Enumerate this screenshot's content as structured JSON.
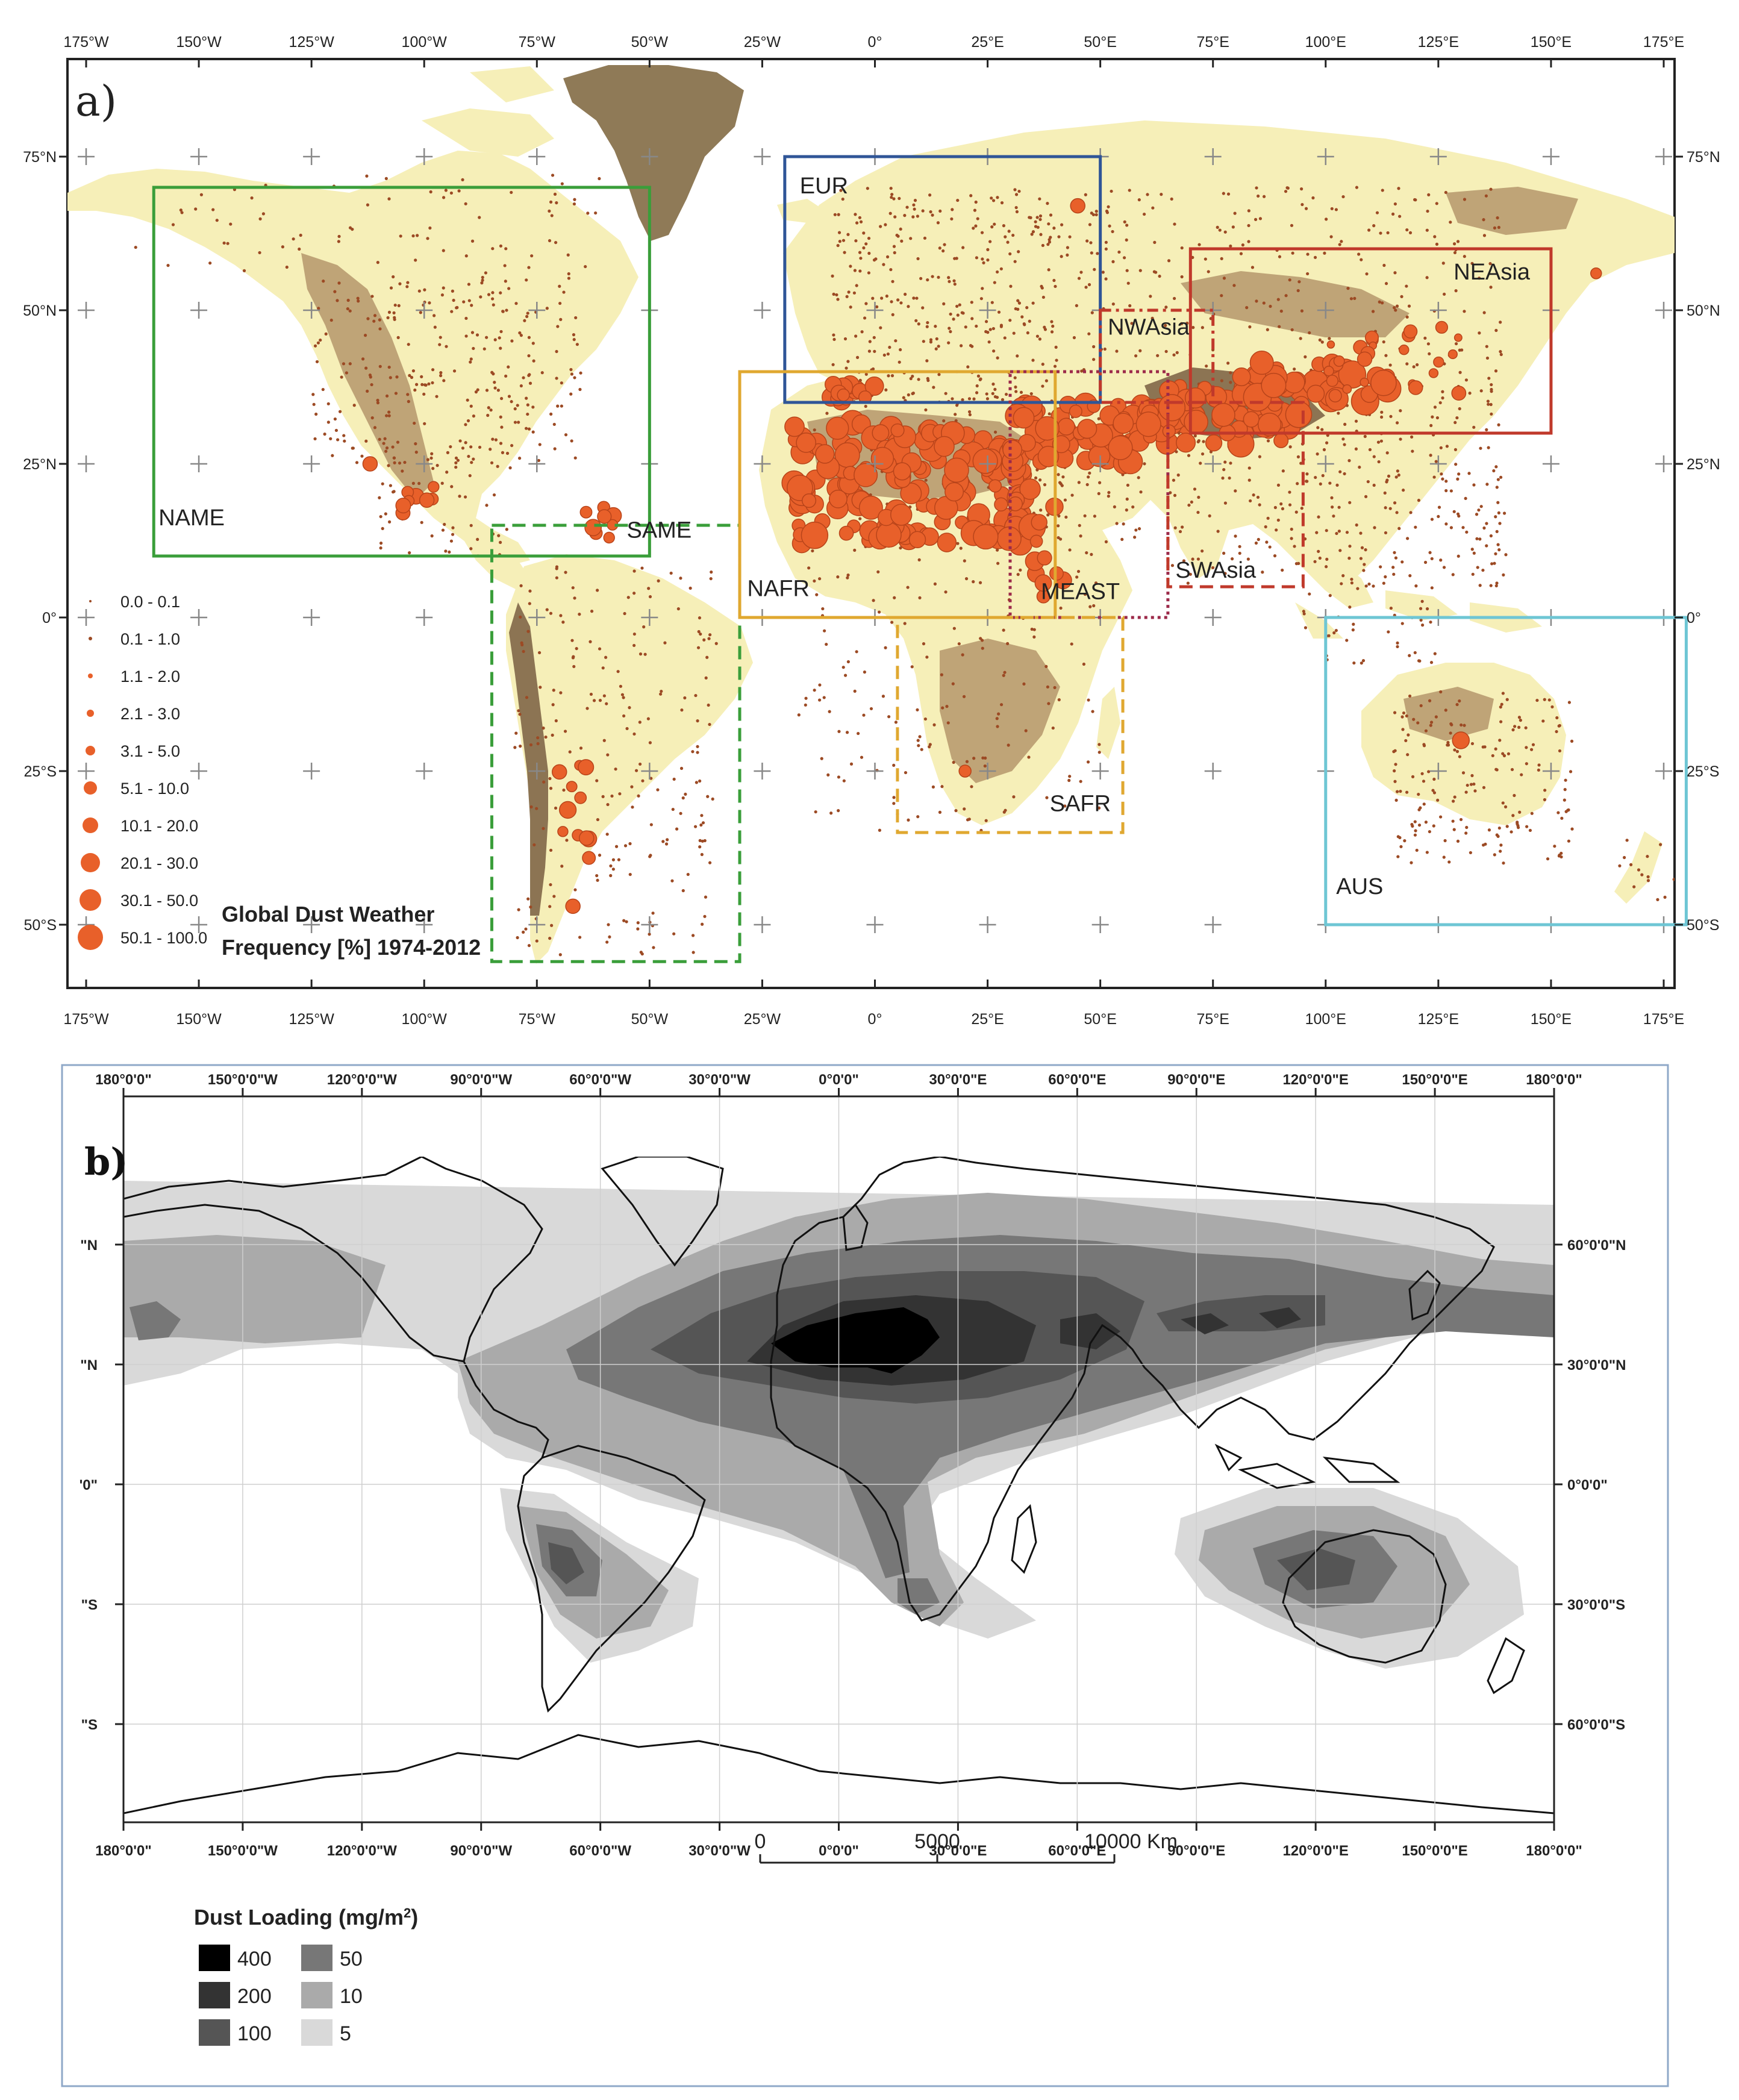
{
  "panel_a": {
    "label": "a)",
    "lon_ticks": [
      "175°W",
      "150°W",
      "125°W",
      "100°W",
      "75°W",
      "50°W",
      "25°W",
      "0°",
      "25°E",
      "50°E",
      "75°E",
      "100°E",
      "125°E",
      "150°E",
      "175°E"
    ],
    "lat_ticks": [
      "75°N",
      "50°N",
      "25°N",
      "0°",
      "25°S",
      "50°S"
    ],
    "regions": [
      {
        "name": "NAME",
        "color": "#3a9e3a",
        "style": "solid",
        "lon": [
          -160,
          -50
        ],
        "lat": [
          10,
          70
        ]
      },
      {
        "name": "SAME",
        "color": "#3a9e3a",
        "style": "dashed",
        "lon": [
          -85,
          -30
        ],
        "lat": [
          -56,
          15
        ]
      },
      {
        "name": "EUR",
        "color": "#2f5597",
        "style": "solid",
        "lon": [
          -20,
          50
        ],
        "lat": [
          35,
          75
        ]
      },
      {
        "name": "NAFR",
        "color": "#e0a830",
        "style": "solid",
        "lon": [
          -30,
          40
        ],
        "lat": [
          0,
          40
        ]
      },
      {
        "name": "MEAST",
        "color": "#9c2a4a",
        "style": "dotted",
        "lon": [
          30,
          65
        ],
        "lat": [
          0,
          40
        ]
      },
      {
        "name": "NWAsia",
        "color": "#c0392b",
        "style": "dashdot",
        "lon": [
          50,
          75
        ],
        "lat": [
          35,
          50
        ]
      },
      {
        "name": "NEAsia",
        "color": "#c0392b",
        "style": "solid",
        "lon": [
          70,
          150
        ],
        "lat": [
          30,
          60
        ]
      },
      {
        "name": "SWAsia",
        "color": "#c0392b",
        "style": "dashed",
        "lon": [
          65,
          95
        ],
        "lat": [
          5,
          35
        ]
      },
      {
        "name": "SAFR",
        "color": "#e0a830",
        "style": "dashed",
        "lon": [
          5,
          55
        ],
        "lat": [
          -35,
          0
        ]
      },
      {
        "name": "AUS",
        "color": "#6ec6d4",
        "style": "solid",
        "lon": [
          100,
          180
        ],
        "lat": [
          -50,
          0
        ]
      }
    ],
    "legend": {
      "title_line1": "Global Dust Weather",
      "title_line2": "Frequency [%] 1974-2012",
      "classes": [
        "0.0 - 0.1",
        "0.1 - 1.0",
        "1.1 - 2.0",
        "2.1 - 3.0",
        "3.1 - 5.0",
        "5.1 - 10.0",
        "10.1 - 20.0",
        "20.1 - 30.0",
        "30.1 - 50.0",
        "50.1 - 100.0"
      ],
      "marker_color": "#e8602a"
    },
    "colors": {
      "land": "#f6efb8",
      "terrain": "#bfa477",
      "high_terrain": "#8c7453",
      "ice": "#8f7a57",
      "dots": "#9c4a24"
    }
  },
  "panel_b": {
    "label": "b)",
    "lon_ticks": [
      "180°0'0\"",
      "150°0'0\"W",
      "120°0'0\"W",
      "90°0'0\"W",
      "60°0'0\"W",
      "30°0'0\"W",
      "0°0'0\"",
      "30°0'0\"E",
      "60°0'0\"E",
      "90°0'0\"E",
      "120°0'0\"E",
      "150°0'0\"E",
      "180°0'0\""
    ],
    "lat_ticks_right": [
      "60°0'0\"N",
      "30°0'0\"N",
      "0°0'0\"",
      "30°0'0\"S",
      "60°0'0\"S"
    ],
    "lat_ticks_left": [
      "\"N",
      "\"N",
      "'0\"",
      "\"S",
      "\"S"
    ],
    "scale": {
      "labels": [
        "0",
        "5000",
        "10000 Km"
      ]
    },
    "legend": {
      "title": "Dust Loading (mg/m",
      "title_sup": "2",
      "title_end": ")",
      "classes": [
        {
          "value": "400",
          "color": "#000000"
        },
        {
          "value": "200",
          "color": "#333333"
        },
        {
          "value": "100",
          "color": "#555555"
        },
        {
          "value": "50",
          "color": "#777777"
        },
        {
          "value": "10",
          "color": "#aaaaaa"
        },
        {
          "value": "5",
          "color": "#d9d9d9"
        }
      ]
    }
  }
}
